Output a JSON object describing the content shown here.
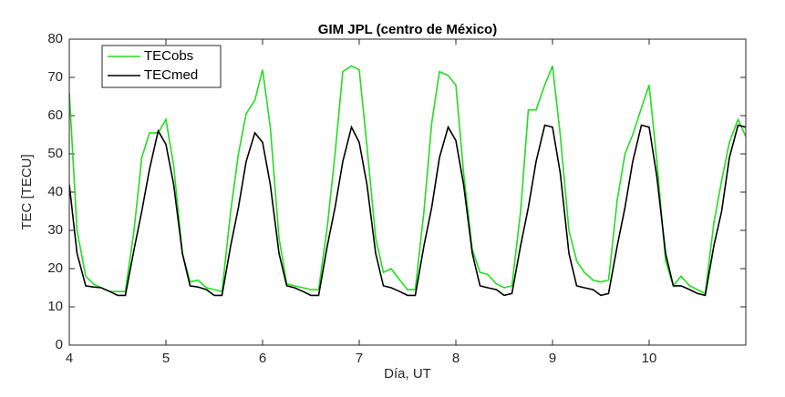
{
  "chart_data": {
    "type": "line",
    "title": "GIM JPL (centro de México)",
    "xlabel": "Día, UT",
    "ylabel": "TEC [TECU]",
    "x": [
      4,
      4.08,
      4.17,
      4.25,
      4.33,
      4.42,
      4.5,
      4.58,
      4.67,
      4.75,
      4.83,
      4.92,
      5,
      5.08,
      5.17,
      5.25,
      5.33,
      5.42,
      5.5,
      5.58,
      5.67,
      5.75,
      5.83,
      5.92,
      6,
      6.08,
      6.17,
      6.25,
      6.33,
      6.42,
      6.5,
      6.58,
      6.67,
      6.75,
      6.83,
      6.92,
      7,
      7.08,
      7.17,
      7.25,
      7.33,
      7.42,
      7.5,
      7.58,
      7.67,
      7.75,
      7.83,
      7.92,
      8,
      8.08,
      8.17,
      8.25,
      8.33,
      8.42,
      8.5,
      8.58,
      8.67,
      8.75,
      8.83,
      8.92,
      9,
      9.08,
      9.17,
      9.25,
      9.33,
      9.42,
      9.5,
      9.58,
      9.67,
      9.75,
      9.83,
      9.92,
      10,
      10.08,
      10.17,
      10.25,
      10.33,
      10.42,
      10.5,
      10.58,
      10.67,
      10.75,
      10.83,
      10.92,
      11
    ],
    "series": [
      {
        "name": "TECobs",
        "color": "#22dd22",
        "values": [
          66,
          30,
          18,
          16,
          15,
          14,
          14,
          14,
          30,
          49,
          55.5,
          55.5,
          59,
          47,
          24,
          16.5,
          17,
          15,
          14.5,
          14,
          35,
          50,
          60.5,
          64,
          72,
          57,
          28,
          16,
          15.5,
          15,
          14.5,
          14.5,
          31,
          50,
          71.5,
          73,
          72,
          52,
          28,
          19,
          20,
          17,
          14.5,
          14.5,
          35,
          58,
          71.5,
          70.5,
          68,
          45,
          25,
          19,
          18.5,
          16,
          15,
          15.5,
          35,
          61.5,
          61.5,
          68,
          73,
          55,
          30,
          22,
          19,
          17,
          16.5,
          17,
          38,
          50,
          55,
          62,
          68,
          48,
          22,
          15.5,
          18,
          15.5,
          14.5,
          13.5,
          32,
          43,
          53,
          59,
          54.5
        ]
      },
      {
        "name": "TECmed",
        "color": "#000000",
        "values": [
          42,
          24,
          15.5,
          15.2,
          15,
          14,
          13,
          13,
          25,
          35,
          46,
          56,
          52.5,
          42,
          24,
          15.5,
          15.2,
          14.5,
          13,
          13,
          26,
          36,
          48,
          55.5,
          53,
          42,
          24,
          15.5,
          15,
          14,
          13,
          13,
          26,
          36,
          48,
          57,
          53,
          42,
          24,
          15.5,
          15,
          14,
          13,
          13,
          26,
          36,
          49,
          57,
          53.5,
          42,
          24,
          15.5,
          15,
          14.5,
          13,
          13.5,
          26,
          36,
          48,
          57.5,
          57,
          45,
          24,
          15.5,
          15,
          14.5,
          13,
          13.5,
          26,
          36,
          48,
          57.5,
          57,
          44,
          24,
          15.5,
          15.5,
          14.5,
          13.5,
          13,
          26,
          35,
          49,
          57.5,
          57
        ]
      }
    ],
    "xlim": [
      4,
      11
    ],
    "xticks": [
      4,
      5,
      6,
      7,
      8,
      9,
      10
    ],
    "ylim": [
      0,
      80
    ],
    "yticks": [
      0,
      10,
      20,
      30,
      40,
      50,
      60,
      70,
      80
    ],
    "legend": "upper left"
  }
}
